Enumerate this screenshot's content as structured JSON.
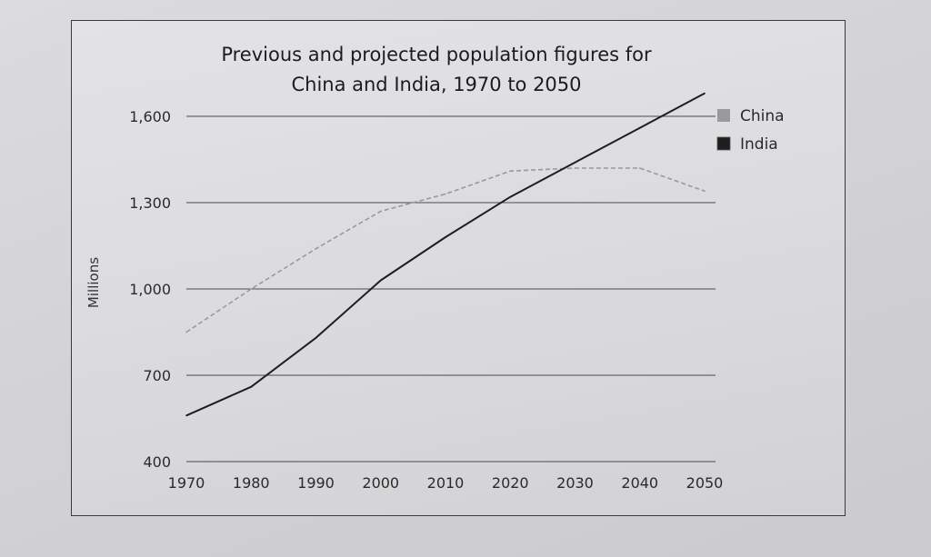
{
  "chart_data": {
    "type": "line",
    "title_line1": "Previous and projected population figures for",
    "title_line2": "China and India, 1970 to 2050",
    "ylabel": "Millions",
    "xlabel": "",
    "x": [
      1970,
      1980,
      1990,
      2000,
      2010,
      2020,
      2030,
      2040,
      2050
    ],
    "x_tick_labels": [
      "1970",
      "1980",
      "1990",
      "2000",
      "2010",
      "2020",
      "2030",
      "2040",
      "2050"
    ],
    "y_ticks": [
      400,
      700,
      1000,
      1300,
      1600
    ],
    "y_tick_labels": [
      "400",
      "700",
      "1,000",
      "1,300",
      "1,600"
    ],
    "ylim": [
      400,
      1600
    ],
    "grid": true,
    "legend_position": "top-right",
    "series": [
      {
        "name": "China",
        "color": "#9a9a9c",
        "dashed": true,
        "points": [
          [
            1970,
            850
          ],
          [
            1980,
            1000
          ],
          [
            1990,
            1140
          ],
          [
            2000,
            1270
          ],
          [
            2010,
            1330
          ],
          [
            2020,
            1410
          ],
          [
            2030,
            1420
          ],
          [
            2040,
            1420
          ],
          [
            2050,
            1340
          ]
        ]
      },
      {
        "name": "India",
        "color": "#1e1e1e",
        "dashed": false,
        "points": [
          [
            1970,
            560
          ],
          [
            1980,
            660
          ],
          [
            1990,
            830
          ],
          [
            2000,
            1030
          ],
          [
            2010,
            1180
          ],
          [
            2020,
            1320
          ],
          [
            2030,
            1440
          ],
          [
            2040,
            1560
          ],
          [
            2050,
            1680
          ]
        ]
      }
    ]
  }
}
